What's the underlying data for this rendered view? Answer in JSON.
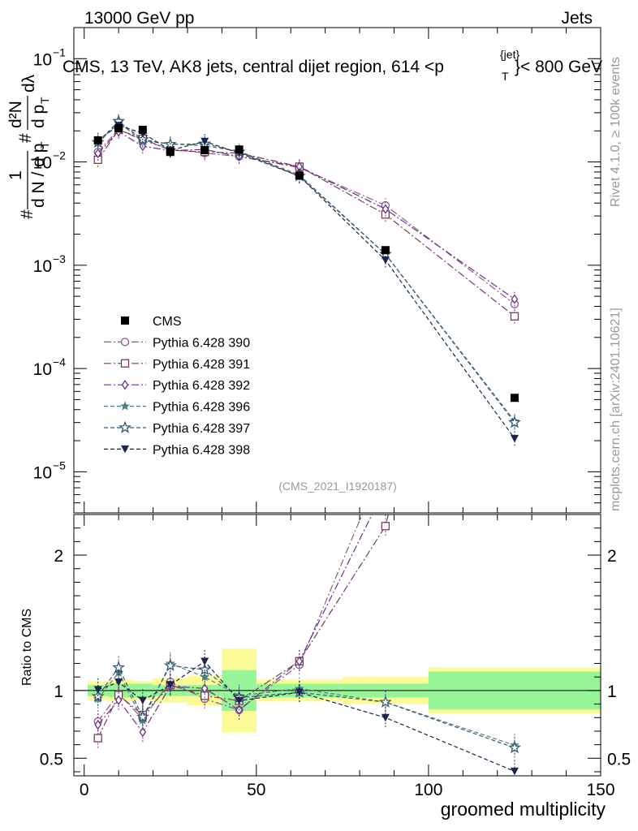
{
  "header": {
    "collision": "13000 GeV pp",
    "category": "Jets",
    "rivet_tag": "Rivet 4.1.0, ≥ 100k events",
    "site_tag": "mcplots.cern.ch [arXiv:2401.10621]",
    "analysis_id": "(CMS_2021_I1920187)"
  },
  "ylabel_top": {
    "prefix": "#",
    "numerator": "1",
    "denominator": "d N / d p",
    "denominator_sub": "T",
    "rhs_numerator": "d²N",
    "rhs_denominator": "d p",
    "rhs_denominator_sub": "T",
    "rhs_tail": "dλ",
    "hash2": "#"
  },
  "ylabel_ratio": "Ratio to CMS",
  "xlabel": "groomed multiplicity",
  "colors": {
    "data": "#000000",
    "p390": "#8b5a83",
    "p391": "#7a3d4d",
    "p392": "#6a2f8f",
    "p396": "#4f7f7f",
    "p397": "#355a76",
    "p398": "#1c2450",
    "band_inner": "#96f596",
    "band_outer": "#fafa96"
  },
  "chart_data": {
    "type": "line",
    "title": "CMS, 13 TeV, AK8 jets, central dijet region, 614 <p",
    "title_sup": "{jet}",
    "title_sub": "T",
    "title_end": "}< 800 GeV",
    "x_range": [
      -3,
      150
    ],
    "x_ticks": [
      0,
      50,
      100,
      150
    ],
    "x_tick_labels": [
      "0",
      "50",
      "100",
      "150"
    ],
    "main": {
      "scale": "log",
      "ylim": [
        4e-06,
        0.2
      ],
      "y_ticks": [
        1e-05,
        0.0001,
        0.001,
        0.01,
        0.1
      ],
      "y_tick_labels": [
        {
          "base": "10",
          "exp": "−5"
        },
        {
          "base": "10",
          "exp": "−4"
        },
        {
          "base": "10",
          "exp": "−3"
        },
        {
          "base": "10",
          "exp": "−2"
        },
        {
          "base": "10",
          "exp": "−1"
        }
      ]
    },
    "ratio": {
      "ylim": [
        0.37,
        2.3
      ],
      "y_ticks": [
        0.5,
        1,
        2
      ],
      "y_tick_labels": [
        "0.5",
        "1",
        "2"
      ]
    },
    "data": {
      "name": "CMS",
      "x": [
        4,
        10,
        17,
        25,
        35,
        45,
        62.5,
        87.5,
        125
      ],
      "y": [
        0.0162,
        0.0212,
        0.0205,
        0.0125,
        0.013,
        0.0132,
        0.0074,
        0.0014,
        5.2e-05
      ],
      "bins": [
        [
          1,
          7
        ],
        [
          7,
          14
        ],
        [
          14,
          20
        ],
        [
          20,
          30
        ],
        [
          30,
          40
        ],
        [
          40,
          50
        ],
        [
          50,
          75
        ],
        [
          75,
          100
        ],
        [
          100,
          150
        ]
      ],
      "band_inner": [
        0.04,
        0.05,
        0.05,
        0.04,
        0.04,
        0.15,
        0.05,
        0.05,
        0.14
      ],
      "band_outer": [
        0.07,
        0.08,
        0.07,
        0.09,
        0.11,
        0.31,
        0.08,
        0.1,
        0.17
      ]
    },
    "series": [
      {
        "name": "Pythia 6.428 390",
        "marker": "open-circle",
        "dash": "9,3,2,3",
        "color_key": "p390",
        "y": [
          0.0125,
          0.0207,
          0.0162,
          0.0133,
          0.0122,
          0.0113,
          0.0088,
          0.0038,
          0.00042
        ]
      },
      {
        "name": "Pythia 6.428 391",
        "marker": "open-square",
        "dash": "9,3,2,3",
        "color_key": "p391",
        "y": [
          0.0105,
          0.0205,
          0.0168,
          0.013,
          0.0125,
          0.0122,
          0.009,
          0.0031,
          0.00032
        ]
      },
      {
        "name": "Pythia 6.428 392",
        "marker": "open-diamond",
        "dash": "9,3,2,3",
        "color_key": "p392",
        "y": [
          0.0121,
          0.0197,
          0.0142,
          0.0129,
          0.0132,
          0.0113,
          0.009,
          0.0035,
          0.00047
        ]
      },
      {
        "name": "Pythia 6.428 396",
        "marker": "star",
        "dash": "5,3",
        "color_key": "p396",
        "y": [
          0.0152,
          0.024,
          0.016,
          0.015,
          0.0143,
          0.0127,
          0.0075,
          0.00128,
          3.1e-05
        ]
      },
      {
        "name": "Pythia 6.428 397",
        "marker": "open-star",
        "dash": "5,3",
        "color_key": "p397",
        "y": [
          0.0155,
          0.0248,
          0.0165,
          0.0148,
          0.015,
          0.0125,
          0.0073,
          0.00128,
          3e-05
        ]
      },
      {
        "name": "Pythia 6.428 398",
        "marker": "filled-triangle-down",
        "dash": "5,3",
        "color_key": "p398",
        "y": [
          0.0163,
          0.0225,
          0.019,
          0.013,
          0.0158,
          0.0122,
          0.0073,
          0.00112,
          2.1e-05
        ]
      }
    ]
  }
}
